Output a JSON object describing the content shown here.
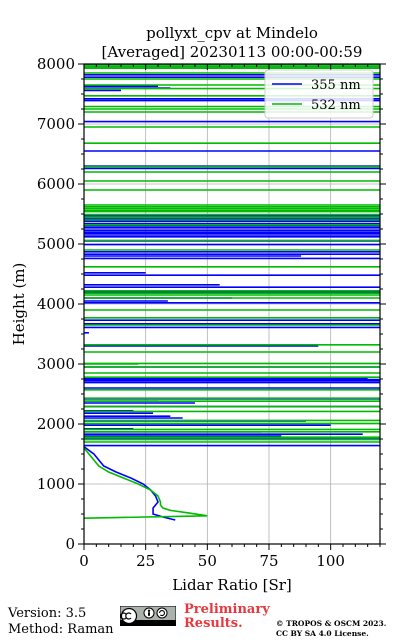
{
  "chart_data": {
    "type": "line",
    "title_line1": "pollyxt_cpv at Mindelo",
    "title_line2": "[Averaged] 20230113 00:00-00:59",
    "xlabel": "Lidar Ratio [Sr]",
    "ylabel": "Height (m)",
    "xlim": [
      0,
      120
    ],
    "ylim": [
      0,
      8000
    ],
    "x_ticks": [
      "0",
      "25",
      "50",
      "75",
      "100"
    ],
    "x_tick_values": [
      0,
      25,
      50,
      75,
      100
    ],
    "y_ticks": [
      "0",
      "1000",
      "2000",
      "3000",
      "4000",
      "5000",
      "6000",
      "7000",
      "8000"
    ],
    "y_tick_values": [
      0,
      1000,
      2000,
      3000,
      4000,
      5000,
      6000,
      7000,
      8000
    ],
    "grid": true,
    "legend_position": "top-right",
    "series": [
      {
        "name": "355 nm",
        "color": "#0000ff",
        "profile": {
          "x": [
            37,
            32,
            28,
            28,
            30,
            29,
            27,
            24,
            19,
            13,
            8,
            6,
            4,
            0
          ],
          "y": [
            400,
            450,
            500,
            600,
            700,
            800,
            900,
            1000,
            1100,
            1200,
            1300,
            1400,
            1500,
            1620
          ]
        },
        "spikes": [
          [
            1640,
            120
          ],
          [
            1770,
            120
          ],
          [
            1800,
            80
          ],
          [
            1830,
            113
          ],
          [
            1870,
            72
          ],
          [
            1920,
            20
          ],
          [
            1980,
            100
          ],
          [
            2050,
            90
          ],
          [
            2100,
            40
          ],
          [
            2130,
            35
          ],
          [
            2180,
            28
          ],
          [
            2220,
            20
          ],
          [
            2290,
            120
          ],
          [
            2350,
            45
          ],
          [
            2380,
            30
          ],
          [
            2420,
            120
          ],
          [
            2600,
            120
          ],
          [
            2690,
            120
          ],
          [
            2720,
            120
          ],
          [
            2740,
            120
          ],
          [
            2760,
            115
          ],
          [
            2950,
            120
          ],
          [
            3300,
            95
          ],
          [
            3520,
            2
          ],
          [
            3610,
            120
          ],
          [
            3670,
            120
          ],
          [
            3730,
            120
          ],
          [
            4020,
            120
          ],
          [
            4050,
            34
          ],
          [
            4100,
            60
          ],
          [
            4200,
            120
          ],
          [
            4280,
            120
          ],
          [
            4320,
            55
          ],
          [
            4480,
            120
          ],
          [
            4520,
            25
          ],
          [
            4760,
            120
          ],
          [
            4800,
            88
          ],
          [
            4830,
            120
          ],
          [
            4870,
            120
          ],
          [
            4990,
            120
          ],
          [
            5050,
            120
          ],
          [
            5120,
            120
          ],
          [
            5150,
            120
          ],
          [
            5180,
            120
          ],
          [
            5200,
            120
          ],
          [
            5230,
            120
          ],
          [
            5270,
            120
          ],
          [
            5300,
            120
          ],
          [
            5340,
            120
          ],
          [
            5380,
            120
          ],
          [
            5420,
            120
          ],
          [
            5470,
            120
          ],
          [
            6260,
            120
          ],
          [
            6300,
            120
          ],
          [
            6550,
            120
          ],
          [
            7040,
            120
          ],
          [
            7390,
            120
          ],
          [
            7420,
            120
          ],
          [
            7560,
            15
          ],
          [
            7600,
            35
          ],
          [
            7630,
            30
          ],
          [
            7780,
            120
          ],
          [
            7820,
            120
          ],
          [
            7960,
            120
          ]
        ]
      },
      {
        "name": "532 nm",
        "color": "#00bb00",
        "profile": {
          "x": [
            0,
            50,
            42,
            35,
            32,
            31,
            31,
            30,
            27,
            22,
            16,
            10,
            6,
            4,
            2,
            0
          ],
          "y": [
            430,
            470,
            520,
            560,
            600,
            650,
            700,
            800,
            900,
            1000,
            1100,
            1200,
            1300,
            1400,
            1500,
            1600
          ]
        },
        "spikes": [
          [
            1700,
            120
          ],
          [
            1740,
            120
          ],
          [
            1780,
            120
          ],
          [
            1870,
            120
          ],
          [
            1910,
            120
          ],
          [
            2010,
            120
          ],
          [
            2060,
            120
          ],
          [
            2210,
            120
          ],
          [
            2290,
            120
          ],
          [
            2380,
            120
          ],
          [
            2430,
            120
          ],
          [
            2570,
            120
          ],
          [
            2780,
            120
          ],
          [
            2850,
            120
          ],
          [
            2950,
            120
          ],
          [
            3000,
            22
          ],
          [
            3010,
            120
          ],
          [
            3200,
            120
          ],
          [
            3320,
            120
          ],
          [
            3650,
            120
          ],
          [
            3770,
            120
          ],
          [
            3900,
            120
          ],
          [
            4100,
            120
          ],
          [
            4150,
            120
          ],
          [
            4180,
            120
          ],
          [
            4220,
            120
          ],
          [
            4620,
            120
          ],
          [
            4900,
            120
          ],
          [
            5060,
            120
          ],
          [
            5320,
            120
          ],
          [
            5400,
            120
          ],
          [
            5440,
            120
          ],
          [
            5490,
            120
          ],
          [
            5540,
            120
          ],
          [
            5560,
            120
          ],
          [
            5590,
            120
          ],
          [
            5620,
            120
          ],
          [
            5650,
            120
          ],
          [
            5900,
            120
          ],
          [
            6050,
            120
          ],
          [
            6200,
            120
          ],
          [
            6290,
            120
          ],
          [
            6680,
            120
          ],
          [
            6950,
            120
          ],
          [
            7200,
            120
          ],
          [
            7250,
            120
          ],
          [
            7290,
            120
          ],
          [
            7470,
            120
          ],
          [
            7590,
            120
          ],
          [
            7650,
            120
          ],
          [
            7750,
            120
          ],
          [
            7850,
            120
          ],
          [
            7930,
            120
          ],
          [
            7960,
            120
          ],
          [
            7990,
            120
          ]
        ]
      }
    ]
  },
  "footer": {
    "version": "Version: 3.5",
    "method": "Method: Raman",
    "preliminary_line1": "Preliminary",
    "preliminary_line2": "Results.",
    "copyright_line1": "© TROPOS & OSCM 2023.",
    "copyright_line2": "CC BY SA 4.0 License."
  }
}
